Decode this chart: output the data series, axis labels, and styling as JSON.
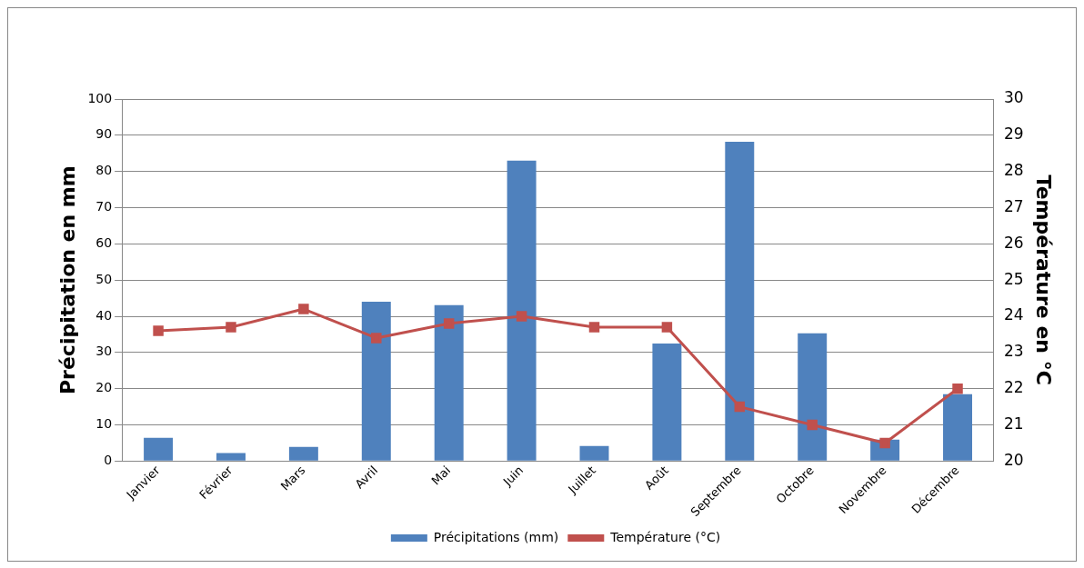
{
  "chart_data": {
    "type": "bar",
    "categories": [
      "Janvier",
      "Février",
      "Mars",
      "Avril",
      "Mai",
      "Juin",
      "Juillet",
      "Août",
      "Septembre",
      "Octobre",
      "Novembre",
      "Décembre"
    ],
    "ylabel": "Précipitation en mm",
    "y2label": "Température en °C",
    "ylim": [
      0,
      100
    ],
    "yticks": [
      0,
      10,
      20,
      30,
      40,
      50,
      60,
      70,
      80,
      90,
      100
    ],
    "y2lim": [
      20,
      30
    ],
    "y2ticks": [
      20,
      21,
      22,
      23,
      24,
      25,
      26,
      27,
      28,
      29,
      30
    ],
    "grid": "y",
    "legend": "bottom",
    "series": [
      {
        "name": "Précipitations (mm)",
        "color": "#4f81bd",
        "values": [
          6.4,
          2.2,
          3.9,
          44,
          43.1,
          83,
          4.2,
          32.5,
          88.2,
          35.3,
          5.9,
          18.5
        ]
      },
      {
        "name": "Température (°C)",
        "type": "line",
        "axis": "y2",
        "color": "#c0504d",
        "marker": "square",
        "values": [
          23.6,
          23.7,
          24.2,
          23.4,
          23.8,
          24.0,
          23.7,
          23.7,
          21.5,
          21.0,
          20.5,
          22.0
        ]
      }
    ]
  }
}
